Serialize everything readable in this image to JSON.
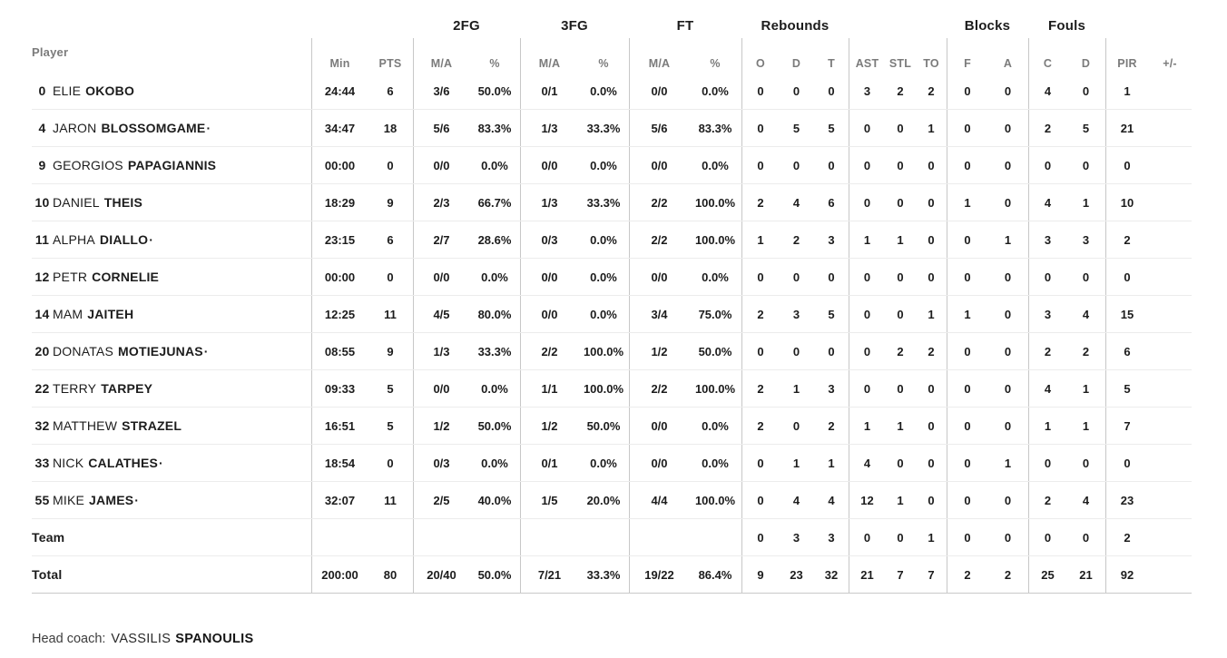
{
  "header": {
    "player": "Player",
    "groups": [
      {
        "id": "minpts",
        "label": "",
        "cols": [
          "Min",
          "PTS"
        ]
      },
      {
        "id": "2fg",
        "label": "2FG",
        "cols": [
          "M/A",
          "%"
        ]
      },
      {
        "id": "3fg",
        "label": "3FG",
        "cols": [
          "M/A",
          "%"
        ]
      },
      {
        "id": "ft",
        "label": "FT",
        "cols": [
          "M/A",
          "%"
        ]
      },
      {
        "id": "rebounds",
        "label": "Rebounds",
        "cols": [
          "O",
          "D",
          "T"
        ]
      },
      {
        "id": "ast-stl-to",
        "label": "",
        "cols": [
          "AST",
          "STL",
          "TO"
        ]
      },
      {
        "id": "blocks",
        "label": "Blocks",
        "cols": [
          "F",
          "A"
        ]
      },
      {
        "id": "fouls",
        "label": "Fouls",
        "cols": [
          "C",
          "D"
        ]
      },
      {
        "id": "pir",
        "label": "",
        "cols": [
          "PIR",
          "+/-"
        ]
      }
    ]
  },
  "starter_marker": "·",
  "players": [
    {
      "number": "0",
      "first": "ELIE",
      "last": "OKOBO",
      "starter": false,
      "stats": [
        "24:44",
        "6",
        "3/6",
        "50.0%",
        "0/1",
        "0.0%",
        "0/0",
        "0.0%",
        "0",
        "0",
        "0",
        "3",
        "2",
        "2",
        "0",
        "0",
        "4",
        "0",
        "1",
        ""
      ]
    },
    {
      "number": "4",
      "first": "JARON",
      "last": "BLOSSOMGAME",
      "starter": true,
      "stats": [
        "34:47",
        "18",
        "5/6",
        "83.3%",
        "1/3",
        "33.3%",
        "5/6",
        "83.3%",
        "0",
        "5",
        "5",
        "0",
        "0",
        "1",
        "0",
        "0",
        "2",
        "5",
        "21",
        ""
      ]
    },
    {
      "number": "9",
      "first": "GEORGIOS",
      "last": "PAPAGIANNIS",
      "starter": false,
      "stats": [
        "00:00",
        "0",
        "0/0",
        "0.0%",
        "0/0",
        "0.0%",
        "0/0",
        "0.0%",
        "0",
        "0",
        "0",
        "0",
        "0",
        "0",
        "0",
        "0",
        "0",
        "0",
        "0",
        ""
      ]
    },
    {
      "number": "10",
      "first": "DANIEL",
      "last": "THEIS",
      "starter": false,
      "stats": [
        "18:29",
        "9",
        "2/3",
        "66.7%",
        "1/3",
        "33.3%",
        "2/2",
        "100.0%",
        "2",
        "4",
        "6",
        "0",
        "0",
        "0",
        "1",
        "0",
        "4",
        "1",
        "10",
        ""
      ]
    },
    {
      "number": "11",
      "first": "ALPHA",
      "last": "DIALLO",
      "starter": true,
      "stats": [
        "23:15",
        "6",
        "2/7",
        "28.6%",
        "0/3",
        "0.0%",
        "2/2",
        "100.0%",
        "1",
        "2",
        "3",
        "1",
        "1",
        "0",
        "0",
        "1",
        "3",
        "3",
        "2",
        ""
      ]
    },
    {
      "number": "12",
      "first": "PETR",
      "last": "CORNELIE",
      "starter": false,
      "stats": [
        "00:00",
        "0",
        "0/0",
        "0.0%",
        "0/0",
        "0.0%",
        "0/0",
        "0.0%",
        "0",
        "0",
        "0",
        "0",
        "0",
        "0",
        "0",
        "0",
        "0",
        "0",
        "0",
        ""
      ]
    },
    {
      "number": "14",
      "first": "MAM",
      "last": "JAITEH",
      "starter": false,
      "stats": [
        "12:25",
        "11",
        "4/5",
        "80.0%",
        "0/0",
        "0.0%",
        "3/4",
        "75.0%",
        "2",
        "3",
        "5",
        "0",
        "0",
        "1",
        "1",
        "0",
        "3",
        "4",
        "15",
        ""
      ]
    },
    {
      "number": "20",
      "first": "DONATAS",
      "last": "MOTIEJUNAS",
      "starter": true,
      "stats": [
        "08:55",
        "9",
        "1/3",
        "33.3%",
        "2/2",
        "100.0%",
        "1/2",
        "50.0%",
        "0",
        "0",
        "0",
        "0",
        "2",
        "2",
        "0",
        "0",
        "2",
        "2",
        "6",
        ""
      ]
    },
    {
      "number": "22",
      "first": "TERRY",
      "last": "TARPEY",
      "starter": false,
      "stats": [
        "09:33",
        "5",
        "0/0",
        "0.0%",
        "1/1",
        "100.0%",
        "2/2",
        "100.0%",
        "2",
        "1",
        "3",
        "0",
        "0",
        "0",
        "0",
        "0",
        "4",
        "1",
        "5",
        ""
      ]
    },
    {
      "number": "32",
      "first": "MATTHEW",
      "last": "STRAZEL",
      "starter": false,
      "stats": [
        "16:51",
        "5",
        "1/2",
        "50.0%",
        "1/2",
        "50.0%",
        "0/0",
        "0.0%",
        "2",
        "0",
        "2",
        "1",
        "1",
        "0",
        "0",
        "0",
        "1",
        "1",
        "7",
        ""
      ]
    },
    {
      "number": "33",
      "first": "NICK",
      "last": "CALATHES",
      "starter": true,
      "stats": [
        "18:54",
        "0",
        "0/3",
        "0.0%",
        "0/1",
        "0.0%",
        "0/0",
        "0.0%",
        "0",
        "1",
        "1",
        "4",
        "0",
        "0",
        "0",
        "1",
        "0",
        "0",
        "0",
        ""
      ]
    },
    {
      "number": "55",
      "first": "MIKE",
      "last": "JAMES",
      "starter": true,
      "stats": [
        "32:07",
        "11",
        "2/5",
        "40.0%",
        "1/5",
        "20.0%",
        "4/4",
        "100.0%",
        "0",
        "4",
        "4",
        "12",
        "1",
        "0",
        "0",
        "0",
        "2",
        "4",
        "23",
        ""
      ]
    }
  ],
  "summary_rows": [
    {
      "label": "Team",
      "stats": [
        "",
        "",
        "",
        "",
        "",
        "",
        "",
        "",
        "0",
        "3",
        "3",
        "0",
        "0",
        "1",
        "0",
        "0",
        "0",
        "0",
        "2",
        ""
      ]
    },
    {
      "label": "Total",
      "stats": [
        "200:00",
        "80",
        "20/40",
        "50.0%",
        "7/21",
        "33.3%",
        "19/22",
        "86.4%",
        "9",
        "23",
        "32",
        "21",
        "7",
        "7",
        "2",
        "2",
        "25",
        "21",
        "92",
        ""
      ]
    }
  ],
  "footer": {
    "head_coach_label": "Head coach:",
    "coach_first_name": "VASSILIS",
    "coach_last_name": "SPANOULIS"
  },
  "colors": {
    "background": "#ffffff",
    "text": "#1c1c1c",
    "muted_header_text": "#7b7b7b",
    "column_divider": "#c7c7c7",
    "row_divider": "#ececec",
    "table_bottom_border": "#c9c9c9"
  }
}
